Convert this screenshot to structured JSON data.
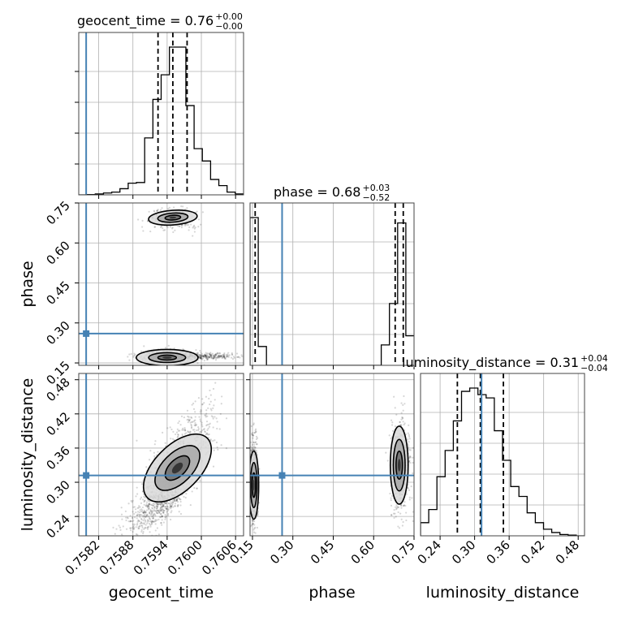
{
  "chart_data": {
    "type": "corner",
    "parameters": [
      "geocent_time",
      "phase",
      "luminosity_distance"
    ],
    "axis_labels": [
      "geocent_time",
      "phase",
      "luminosity_distance"
    ],
    "truths": {
      "geocent_time": 0.75798,
      "phase": 0.26,
      "luminosity_distance": 0.312
    },
    "truth_color": "#4682b4",
    "ranges": {
      "geocent_time": [
        0.75785,
        0.76074
      ],
      "phase": [
        0.141,
        0.75
      ],
      "luminosity_distance": [
        0.206,
        0.491
      ]
    },
    "ticks": {
      "geocent_time": {
        "values": [
          0.7582,
          0.7588,
          0.7594,
          0.76,
          0.7606
        ],
        "labels": [
          "0.7582",
          "0.7588",
          "0.7594",
          "0.7600",
          "0.7606"
        ]
      },
      "phase": {
        "values": [
          0.15,
          0.3,
          0.45,
          0.6,
          0.75
        ],
        "labels": [
          "0.15",
          "0.30",
          "0.45",
          "0.60",
          "0.75"
        ]
      },
      "luminosity_distance": {
        "values": [
          0.24,
          0.3,
          0.36,
          0.42,
          0.48
        ],
        "labels": [
          "0.24",
          "0.30",
          "0.36",
          "0.42",
          "0.48"
        ]
      }
    },
    "marginal_titles": {
      "geocent_time": {
        "prefix": "geocent_time = 0.76",
        "sup": "+0.00",
        "sub": "−0.00"
      },
      "phase": {
        "prefix": "phase = 0.68",
        "sup": "+0.03",
        "sub": "−0.52"
      },
      "luminosity_distance": {
        "prefix": "luminosity_distance = 0.31",
        "sup": "+0.04",
        "sub": "−0.04"
      }
    },
    "quantiles": {
      "geocent_time": [
        0.75924,
        0.7595,
        0.75975
      ],
      "phase": [
        0.16,
        0.68,
        0.71
      ],
      "luminosity_distance": [
        0.27,
        0.31,
        0.35
      ]
    },
    "histograms": {
      "geocent_time": {
        "edges_start": 0.75785,
        "bin_width": 0.0001445,
        "counts": [
          0,
          1,
          3,
          6,
          9,
          20,
          38,
          40,
          185,
          310,
          390,
          480,
          480,
          290,
          150,
          110,
          50,
          30,
          9,
          3
        ]
      },
      "phase": {
        "edges_start": 0.141,
        "bin_width": 0.03045,
        "counts": [
          275,
          35,
          0,
          0,
          0,
          0,
          0,
          0,
          0,
          0,
          0,
          0,
          0,
          0,
          0,
          0,
          38,
          115,
          265,
          55
        ]
      },
      "luminosity_distance": {
        "edges_start": 0.206,
        "bin_width": 0.01425,
        "counts": [
          20,
          40,
          90,
          130,
          175,
          220,
          225,
          215,
          210,
          160,
          115,
          75,
          60,
          35,
          20,
          10,
          5,
          2,
          1,
          0
        ]
      }
    }
  }
}
